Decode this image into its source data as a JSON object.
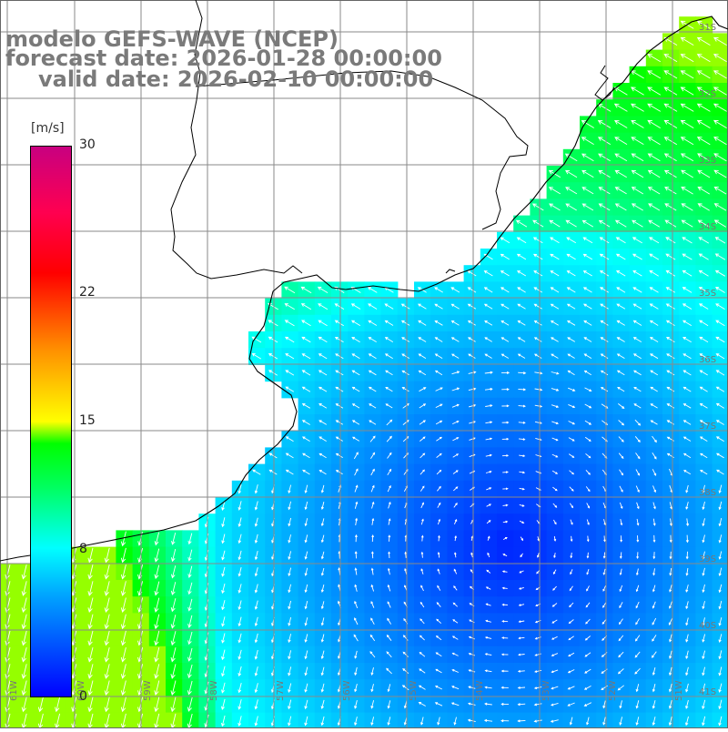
{
  "header": {
    "model_line": "modelo GEFS-WAVE (NCEP)",
    "forecast_line": "forecast date: 2026-01-28 00:00:00",
    "valid_line": "valid date: 2026-02-10 00:00:00"
  },
  "colorbar": {
    "unit": "[m/s]",
    "ticks": [
      {
        "label": "30",
        "value": 30
      },
      {
        "label": "22",
        "value": 22
      },
      {
        "label": "15",
        "value": 15
      },
      {
        "label": "8",
        "value": 8
      },
      {
        "label": "0",
        "value": 0
      }
    ],
    "min": 0,
    "max": 30
  },
  "map": {
    "field": "wind speed",
    "lon_labels": [
      "61W",
      "60W",
      "59W",
      "58W",
      "57W",
      "56W",
      "55W",
      "54W",
      "53W",
      "52W",
      "51W"
    ],
    "lat_labels": [
      "31S",
      "32S",
      "33S",
      "34S",
      "35S",
      "36S",
      "37S",
      "38S",
      "39S",
      "40S",
      "41S"
    ],
    "colors": {
      "land": "#ffffff",
      "grid": "#8a8a8a",
      "coast": "#000000",
      "arrow": "#ffffff"
    }
  }
}
